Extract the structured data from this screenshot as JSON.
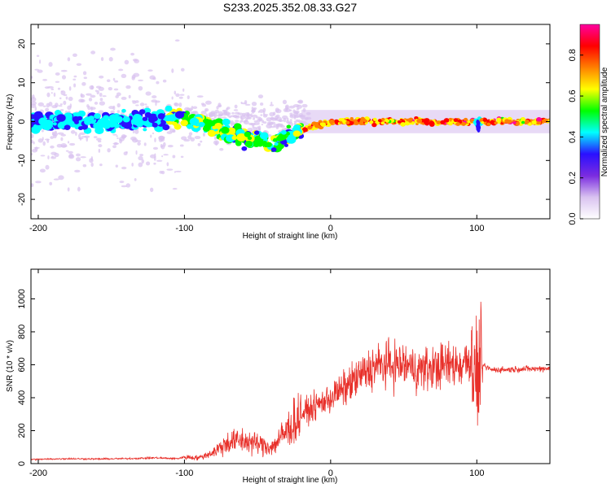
{
  "title": "S233.2025.352.08.33.G27",
  "chart_data": [
    {
      "type": "heatmap",
      "name": "spectrogram",
      "xlabel": "Height of straight line (km)",
      "ylabel": "Frequency (Hz)",
      "xlim": [
        -205,
        150
      ],
      "ylim": [
        -25,
        25
      ],
      "xticks": [
        -200,
        -100,
        0,
        100
      ],
      "yticks": [
        -20,
        -10,
        0,
        10,
        20
      ],
      "colorbar": {
        "label": "Normalized spectral amplitude",
        "range": [
          0,
          0.95
        ],
        "ticks": [
          "0.0",
          "0.2",
          "0.4",
          "0.6",
          "0.8"
        ],
        "colors": [
          "#ffffff",
          "#d9c2f0",
          "#7a2be0",
          "#2a10ff",
          "#00ffff",
          "#00ff00",
          "#ffff00",
          "#ff8000",
          "#ff0000",
          "#ff00a0"
        ]
      },
      "ridge": {
        "description_points_x": [
          -200,
          -150,
          -100,
          -60,
          -40,
          -20,
          0,
          50,
          100,
          150
        ],
        "description_points_y": [
          0,
          0,
          1,
          -4,
          -6,
          -2,
          0,
          0,
          0,
          0
        ]
      }
    },
    {
      "type": "line",
      "name": "snr",
      "xlabel": "Height of straight line (km)",
      "ylabel": "SNR (10 * v/v)",
      "xlim": [
        -205,
        150
      ],
      "ylim": [
        0,
        1180
      ],
      "xticks": [
        -200,
        -100,
        0,
        100
      ],
      "yticks": [
        0,
        200,
        400,
        600,
        800,
        1000
      ],
      "color": "#e8302a",
      "series": [
        {
          "name": "SNR",
          "x": [
            -205,
            -180,
            -160,
            -140,
            -120,
            -105,
            -100,
            -90,
            -80,
            -70,
            -60,
            -50,
            -40,
            -30,
            -20,
            -10,
            0,
            10,
            20,
            30,
            40,
            50,
            60,
            70,
            80,
            90,
            95,
            100,
            103,
            110,
            120,
            130,
            140,
            150
          ],
          "values": [
            25,
            30,
            28,
            30,
            35,
            30,
            40,
            35,
            70,
            130,
            140,
            120,
            100,
            200,
            300,
            350,
            400,
            460,
            530,
            590,
            600,
            600,
            570,
            580,
            600,
            600,
            650,
            500,
            600,
            570,
            570,
            575,
            575,
            580
          ]
        }
      ]
    }
  ]
}
